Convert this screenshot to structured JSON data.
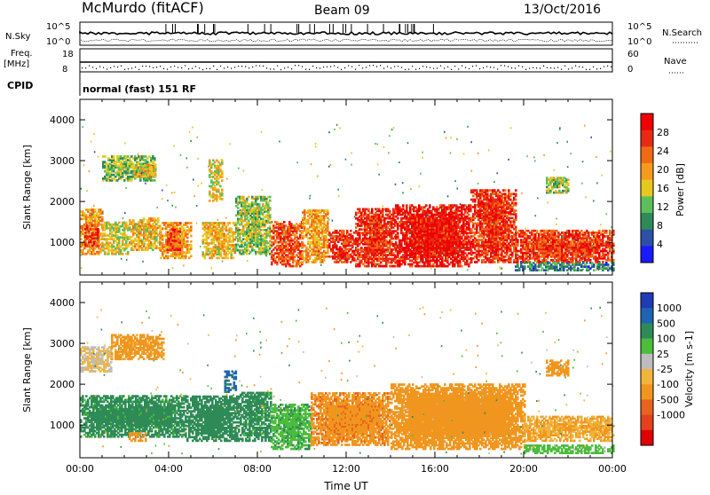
{
  "header": {
    "station": "McMurdo (fitACF)",
    "beam": "Beam 09",
    "date": "13/Oct/2016",
    "cpid_text": "normal (fast) 151 RF"
  },
  "strip_panels": {
    "nsky": {
      "label": "N.Sky",
      "scale_top": "10^5",
      "scale_bottom": "10^0",
      "right_label": "N.Search",
      "right_top": "10^5",
      "right_bottom": "10^0"
    },
    "freq": {
      "label_top": "Freq.",
      "label_unit": "[MHz]",
      "ticks_left": [
        "18",
        "8"
      ],
      "ticks_right": [
        "60",
        "0"
      ],
      "right_label": "Nave"
    },
    "cpid": {
      "label": "CPID"
    }
  },
  "colors": {
    "power": [
      "#1a1aff",
      "#2d4fa8",
      "#2e8b57",
      "#5cbf5c",
      "#e6c81e",
      "#f59a1e",
      "#f06a14",
      "#e82a14",
      "#ee0000"
    ],
    "velocity": [
      "#1f3cb4",
      "#1f63b3",
      "#2e8b57",
      "#4cbc3c",
      "#bdbdbd",
      "#f0b43c",
      "#f0961e",
      "#e8641e",
      "#e4421c",
      "#e00000"
    ]
  },
  "chart_data": [
    {
      "type": "heatmap",
      "title": "Power",
      "ylabel": "Slant Range [km]",
      "xlabel": "",
      "ylim": [
        200,
        4500
      ],
      "xlim": [
        0,
        24
      ],
      "y_ticks": [
        1000,
        2000,
        3000,
        4000
      ],
      "colorbar": {
        "label": "Power [dB]",
        "range": [
          0,
          32
        ],
        "ticks": [
          4,
          8,
          12,
          16,
          20,
          24,
          28
        ]
      },
      "regions": [
        {
          "t0": 0.0,
          "t1": 1.0,
          "r0": 700,
          "r1": 1800,
          "db": 20
        },
        {
          "t0": 0.2,
          "t1": 0.8,
          "r0": 900,
          "r1": 1400,
          "db": 27
        },
        {
          "t0": 1.0,
          "t1": 2.2,
          "r0": 700,
          "r1": 1500,
          "db": 16
        },
        {
          "t0": 2.2,
          "t1": 3.6,
          "r0": 800,
          "r1": 1600,
          "db": 18
        },
        {
          "t0": 3.6,
          "t1": 5.0,
          "r0": 600,
          "r1": 1500,
          "db": 20
        },
        {
          "t0": 3.9,
          "t1": 4.5,
          "r0": 800,
          "r1": 1300,
          "db": 26
        },
        {
          "t0": 1.0,
          "t1": 3.4,
          "r0": 2500,
          "r1": 3100,
          "db": 13
        },
        {
          "t0": 2.4,
          "t1": 3.4,
          "r0": 2600,
          "r1": 2900,
          "db": 18
        },
        {
          "t0": 5.5,
          "t1": 7.0,
          "r0": 600,
          "r1": 1500,
          "db": 18
        },
        {
          "t0": 5.8,
          "t1": 6.4,
          "r0": 2000,
          "r1": 3000,
          "db": 16
        },
        {
          "t0": 7.0,
          "t1": 8.6,
          "r0": 700,
          "r1": 2100,
          "db": 14
        },
        {
          "t0": 8.6,
          "t1": 10.0,
          "r0": 400,
          "r1": 1500,
          "db": 25
        },
        {
          "t0": 10.0,
          "t1": 11.2,
          "r0": 500,
          "r1": 1800,
          "db": 20
        },
        {
          "t0": 11.2,
          "t1": 12.4,
          "r0": 500,
          "r1": 1300,
          "db": 27
        },
        {
          "t0": 12.4,
          "t1": 14.2,
          "r0": 400,
          "r1": 1800,
          "db": 27
        },
        {
          "t0": 14.2,
          "t1": 17.6,
          "r0": 400,
          "r1": 1900,
          "db": 29
        },
        {
          "t0": 17.6,
          "t1": 19.6,
          "r0": 500,
          "r1": 2300,
          "db": 27
        },
        {
          "t0": 19.6,
          "t1": 24.0,
          "r0": 500,
          "r1": 1300,
          "db": 26
        },
        {
          "t0": 19.6,
          "t1": 24.0,
          "r0": 300,
          "r1": 500,
          "db": 8
        },
        {
          "t0": 21.0,
          "t1": 22.0,
          "r0": 2200,
          "r1": 2600,
          "db": 14
        }
      ]
    },
    {
      "type": "heatmap",
      "title": "Velocity",
      "ylabel": "Slant Range [km]",
      "xlabel": "Time UT",
      "ylim": [
        200,
        4500
      ],
      "xlim": [
        0,
        24
      ],
      "y_ticks": [
        1000,
        2000,
        3000,
        4000
      ],
      "x_ticks": [
        "00:00",
        "04:00",
        "08:00",
        "12:00",
        "16:00",
        "20:00",
        "00:00"
      ],
      "colorbar": {
        "label": "Velocity [m s-1]",
        "ticks": [
          "1000",
          "500",
          "100",
          "25",
          "-25",
          "-100",
          "-500",
          "-1000"
        ]
      },
      "regions": [
        {
          "t0": 0.0,
          "t1": 4.8,
          "r0": 700,
          "r1": 1700,
          "vel": 150
        },
        {
          "t0": 0.0,
          "t1": 1.4,
          "r0": 2300,
          "r1": 2900,
          "vel": -30
        },
        {
          "t0": 1.4,
          "t1": 3.8,
          "r0": 2600,
          "r1": 3200,
          "vel": -150
        },
        {
          "t0": 2.2,
          "t1": 3.0,
          "r0": 600,
          "r1": 800,
          "vel": -200
        },
        {
          "t0": 4.8,
          "t1": 7.2,
          "r0": 600,
          "r1": 1700,
          "vel": 200
        },
        {
          "t0": 6.5,
          "t1": 7.0,
          "r0": 1800,
          "r1": 2300,
          "vel": 600
        },
        {
          "t0": 7.2,
          "t1": 8.6,
          "r0": 600,
          "r1": 1800,
          "vel": 150
        },
        {
          "t0": 8.6,
          "t1": 10.4,
          "r0": 400,
          "r1": 1500,
          "vel": 80
        },
        {
          "t0": 10.4,
          "t1": 14.0,
          "r0": 500,
          "r1": 1800,
          "vel": -400
        },
        {
          "t0": 14.0,
          "t1": 20.0,
          "r0": 400,
          "r1": 2000,
          "vel": -300
        },
        {
          "t0": 20.0,
          "t1": 24.0,
          "r0": 600,
          "r1": 1200,
          "vel": -100
        },
        {
          "t0": 20.0,
          "t1": 24.0,
          "r0": 300,
          "r1": 500,
          "vel": 60
        },
        {
          "t0": 21.0,
          "t1": 22.0,
          "r0": 2200,
          "r1": 2600,
          "vel": -300
        }
      ]
    }
  ]
}
